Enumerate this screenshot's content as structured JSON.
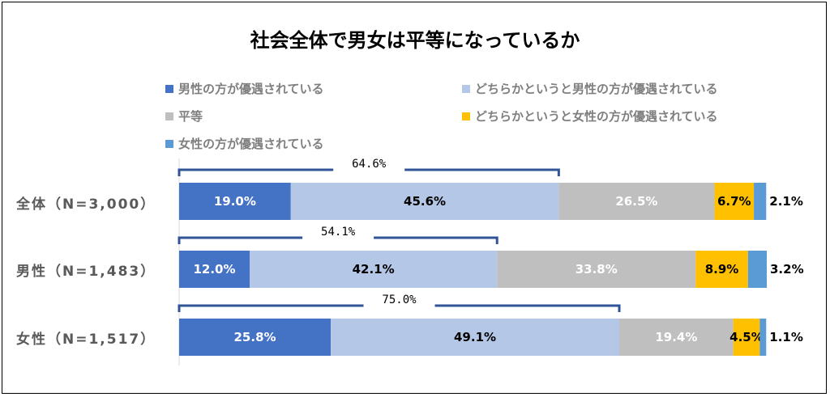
{
  "chart_data": {
    "type": "bar",
    "stacked": "horizontal-100%",
    "title": "社会全体で男女は平等になっているか",
    "categories": [
      "全体（N=3,000）",
      "男性（N=1,483）",
      "女性（N=1,517）"
    ],
    "series": [
      {
        "name": "男性の方が優遇されている",
        "color": "#4472c4",
        "label_color": "#ffffff",
        "values": [
          19.0,
          12.0,
          25.8
        ]
      },
      {
        "name": "どちらかというと男性の方が優遇されている",
        "color": "#b4c7e7",
        "label_color": "#000000",
        "values": [
          45.6,
          42.1,
          49.1
        ]
      },
      {
        "name": "平等",
        "color": "#bfbfbf",
        "label_color": "#ffffff",
        "values": [
          26.5,
          33.8,
          19.4
        ]
      },
      {
        "name": "どちらかというと女性の方が優遇されている",
        "color": "#ffc000",
        "label_color": "#000000",
        "values": [
          6.7,
          8.9,
          4.5
        ]
      },
      {
        "name": "女性の方が優遇されている",
        "color": "#5b9bd5",
        "label_color": "#000000",
        "values": [
          2.1,
          3.2,
          1.1
        ]
      }
    ],
    "data_labels": [
      [
        "19.0%",
        "45.6%",
        "26.5%",
        "6.7%",
        "2.1%"
      ],
      [
        "12.0%",
        "42.1%",
        "33.8%",
        "8.9%",
        "3.2%"
      ],
      [
        "25.8%",
        "49.1%",
        "19.4%",
        "4.5%",
        "1.1%"
      ]
    ],
    "bracket_totals": [
      "64.6%",
      "54.1%",
      "75.0%"
    ],
    "xlim": [
      0,
      100
    ],
    "legend_position": "top"
  }
}
